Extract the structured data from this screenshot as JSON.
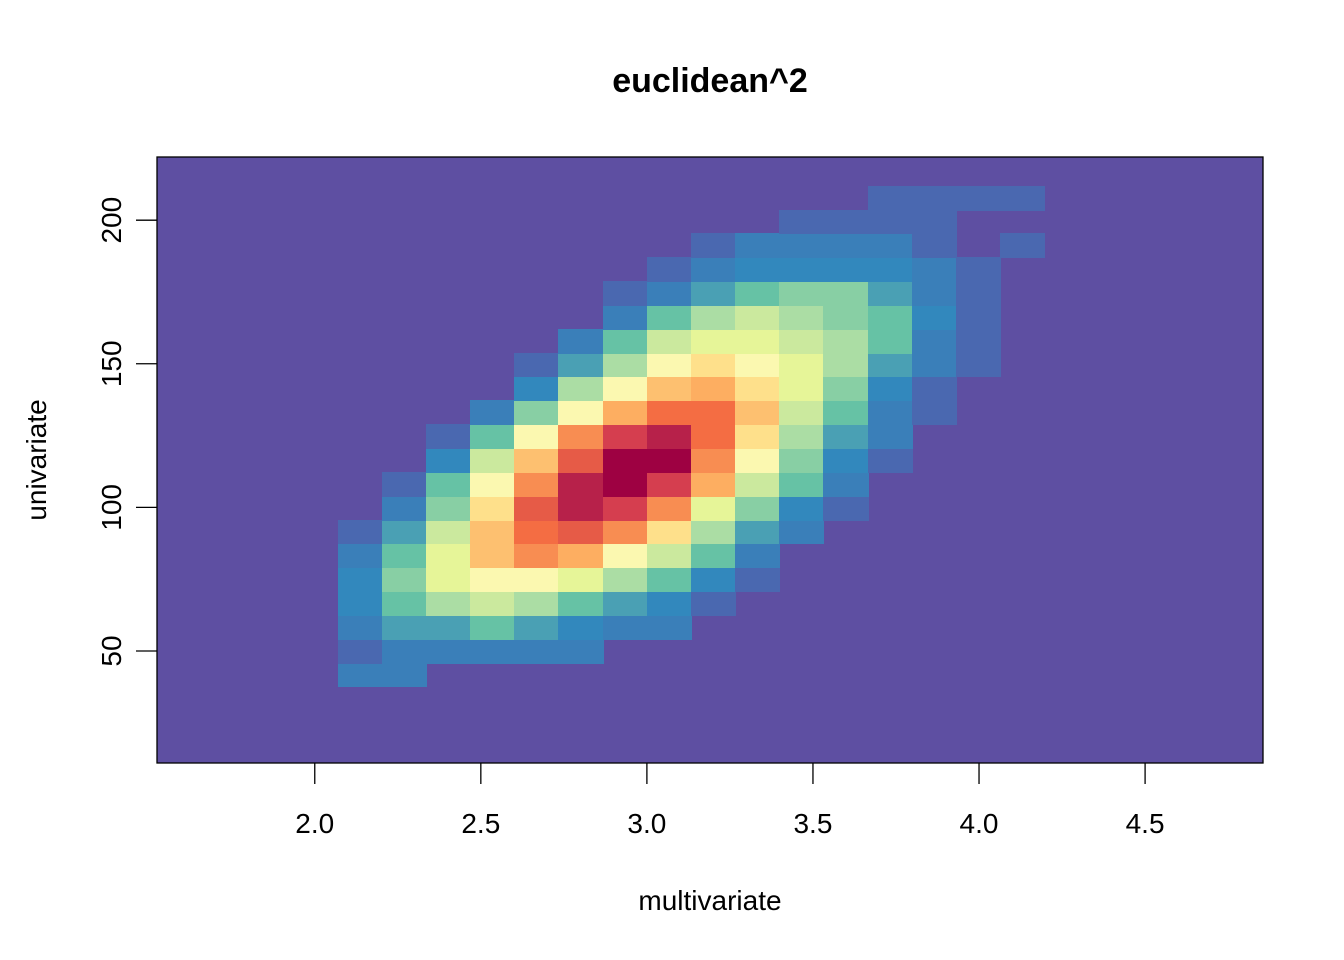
{
  "chart_data": {
    "type": "heatmap",
    "title": "euclidean^2",
    "xlabel": "multivariate",
    "ylabel": "univariate",
    "xlim": [
      1.525,
      4.855
    ],
    "ylim": [
      11,
      222
    ],
    "x_ticks": [
      "2.0",
      "2.5",
      "3.0",
      "3.5",
      "4.0",
      "4.5"
    ],
    "y_ticks": [
      "50",
      "100",
      "150",
      "200"
    ],
    "grid": false,
    "legend": "none",
    "background_color": "#5e4fa2",
    "palette": [
      "#5e4fa2",
      "#4a68b0",
      "#3a7fb9",
      "#3288bd",
      "#4aa0b4",
      "#66c2a5",
      "#88cfa4",
      "#abdda4",
      "#cbe99e",
      "#e6f598",
      "#fbf8b0",
      "#fee08b",
      "#fdc070",
      "#fdae61",
      "#f88d52",
      "#f46d43",
      "#e65b47",
      "#d53e4f",
      "#b7214a",
      "#9e0142"
    ],
    "cell_width": 0.133,
    "cell_height": 8.3,
    "x_start": 2.07,
    "y_start": 37.5,
    "rows": [
      [
        2,
        2,
        0,
        0,
        0,
        0,
        0,
        0,
        0,
        0,
        0,
        0,
        0,
        0,
        0,
        0,
        0,
        0,
        0,
        0,
        0,
        0,
        0,
        0,
        0,
        0,
        0,
        0,
        0
      ],
      [
        1,
        2,
        2,
        2,
        2,
        2,
        0,
        0,
        0,
        0,
        0,
        0,
        0,
        0,
        0,
        0,
        0,
        0,
        0,
        0,
        0,
        0,
        0,
        0,
        0,
        0,
        0,
        0,
        0
      ],
      [
        2,
        4,
        4,
        5,
        4,
        3,
        2,
        2,
        0,
        0,
        0,
        0,
        0,
        0,
        0,
        0,
        0,
        0,
        0,
        0,
        0,
        0,
        0,
        0,
        0,
        0,
        0,
        0,
        0
      ],
      [
        3,
        5,
        7,
        8,
        7,
        5,
        4,
        3,
        1,
        0,
        0,
        0,
        0,
        0,
        0,
        0,
        0,
        0,
        0,
        0,
        0,
        0,
        0,
        0,
        0,
        0,
        0,
        0,
        0
      ],
      [
        3,
        6,
        9,
        10,
        10,
        9,
        7,
        5,
        3,
        1,
        0,
        0,
        0,
        0,
        0,
        0,
        0,
        0,
        0,
        0,
        0,
        0,
        0,
        0,
        0,
        0,
        0,
        0,
        0
      ],
      [
        2,
        5,
        9,
        12,
        14,
        13,
        10,
        8,
        5,
        2,
        0,
        0,
        0,
        0,
        0,
        0,
        0,
        0,
        0,
        0,
        0,
        0,
        0,
        0,
        0,
        0,
        0,
        0,
        0
      ],
      [
        1,
        4,
        8,
        12,
        15,
        16,
        14,
        11,
        7,
        4,
        2,
        0,
        0,
        0,
        0,
        0,
        0,
        0,
        0,
        0,
        0,
        0,
        0,
        0,
        0,
        0,
        0,
        0,
        0
      ],
      [
        0,
        2,
        6,
        11,
        16,
        18,
        17,
        14,
        9,
        6,
        3,
        1,
        0,
        0,
        0,
        0,
        0,
        0,
        0,
        0,
        0,
        0,
        0,
        0,
        0,
        0,
        0,
        0,
        0
      ],
      [
        0,
        1,
        5,
        10,
        14,
        18,
        19,
        17,
        13,
        8,
        5,
        2,
        0,
        0,
        0,
        0,
        0,
        0,
        0,
        0,
        0,
        0,
        0,
        0,
        0,
        0,
        0,
        0,
        0
      ],
      [
        0,
        0,
        3,
        8,
        12,
        16,
        19,
        19,
        14,
        10,
        6,
        3,
        1,
        0,
        0,
        0,
        0,
        0,
        0,
        0,
        0,
        0,
        0,
        0,
        0,
        0,
        0,
        0,
        0
      ],
      [
        0,
        0,
        1,
        5,
        10,
        14,
        17,
        18,
        15,
        11,
        7,
        4,
        2,
        0,
        0,
        0,
        0,
        0,
        0,
        0,
        0,
        0,
        0,
        0,
        0,
        0,
        0,
        0,
        0
      ],
      [
        0,
        0,
        0,
        2,
        6,
        10,
        13,
        15,
        15,
        12,
        8,
        5,
        2,
        1,
        0,
        0,
        0,
        0,
        0,
        0,
        0,
        0,
        0,
        0,
        0,
        0,
        0,
        0,
        0
      ],
      [
        0,
        0,
        0,
        0,
        3,
        7,
        10,
        12,
        13,
        11,
        9,
        6,
        3,
        1,
        0,
        0,
        0,
        0,
        0,
        0,
        0,
        0,
        0,
        0,
        0,
        0,
        0,
        0,
        0
      ],
      [
        0,
        0,
        0,
        0,
        1,
        4,
        7,
        10,
        11,
        10,
        9,
        7,
        4,
        2,
        1,
        0,
        0,
        0,
        0,
        0,
        0,
        0,
        0,
        0,
        0,
        0,
        0,
        0,
        0
      ],
      [
        0,
        0,
        0,
        0,
        0,
        2,
        5,
        8,
        9,
        9,
        8,
        7,
        5,
        2,
        1,
        0,
        0,
        0,
        0,
        0,
        0,
        0,
        0,
        0,
        0,
        0,
        0,
        0,
        0
      ],
      [
        0,
        0,
        0,
        0,
        0,
        0,
        2,
        5,
        7,
        8,
        7,
        6,
        5,
        3,
        1,
        0,
        0,
        0,
        0,
        0,
        0,
        0,
        0,
        0,
        0,
        0,
        0,
        0,
        0
      ],
      [
        0,
        0,
        0,
        0,
        0,
        0,
        1,
        2,
        4,
        5,
        6,
        6,
        4,
        2,
        1,
        0,
        0,
        0,
        0,
        0,
        0,
        0,
        0,
        0,
        0,
        0,
        0,
        0,
        0
      ],
      [
        0,
        0,
        0,
        0,
        0,
        0,
        0,
        1,
        2,
        3,
        3,
        3,
        3,
        2,
        1,
        0,
        0,
        0,
        0,
        0,
        0,
        0,
        0,
        0,
        0,
        0,
        0,
        0,
        0
      ],
      [
        0,
        0,
        0,
        0,
        0,
        0,
        0,
        0,
        1,
        2,
        2,
        2,
        2,
        1,
        0,
        1,
        0,
        0,
        0,
        0,
        0,
        0,
        0,
        0,
        0,
        0,
        0,
        0,
        0
      ],
      [
        0,
        0,
        0,
        0,
        0,
        0,
        0,
        0,
        0,
        0,
        1,
        1,
        1,
        1,
        0,
        0,
        0,
        0,
        0,
        0,
        0,
        0,
        0,
        0,
        0,
        0,
        0,
        0,
        0
      ],
      [
        0,
        0,
        0,
        0,
        0,
        0,
        0,
        0,
        0,
        0,
        0,
        0,
        1,
        1,
        1,
        1,
        0,
        0,
        0,
        0,
        0,
        0,
        0,
        0,
        0,
        0,
        0,
        0,
        0
      ]
    ]
  }
}
